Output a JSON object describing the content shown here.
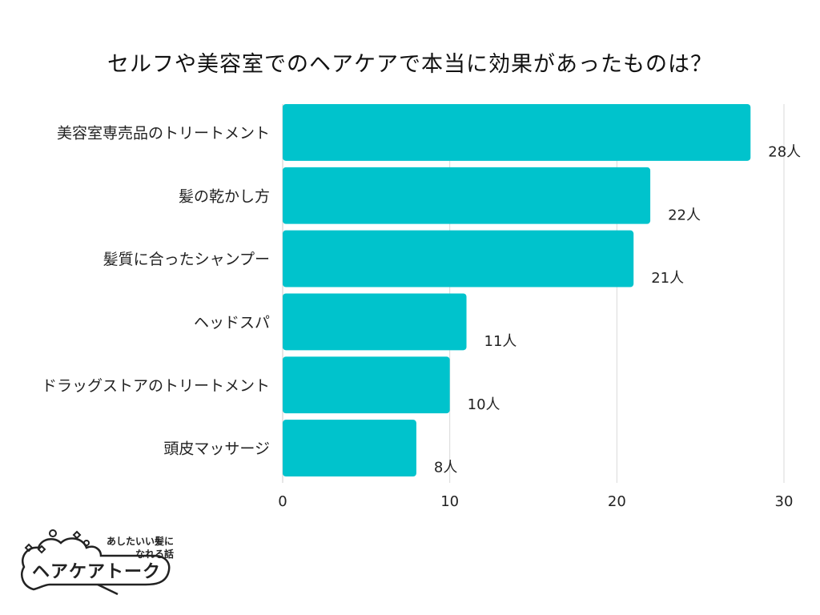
{
  "title": "セルフや美容室でのヘアケアで本当に効果があったものは？",
  "chart_data": {
    "type": "bar",
    "orientation": "horizontal",
    "categories": [
      "美容室専売品のトリートメント",
      "髪の乾かし方",
      "髪質に合ったシャンプー",
      "ヘッドスパ",
      "ドラッグストアのトリートメント",
      "頭皮マッサージ"
    ],
    "values": [
      28,
      22,
      21,
      11,
      10,
      8
    ],
    "value_labels": [
      "28人",
      "22人",
      "21人",
      "11人",
      "10人",
      "8人"
    ],
    "xlim": [
      0,
      30
    ],
    "x_ticks": [
      0,
      10,
      20,
      30
    ],
    "x_tick_labels": [
      "0",
      "10",
      "20",
      "30"
    ],
    "grid": true,
    "bar_color": "#00c3cc",
    "grid_color": "#d9d9d9"
  },
  "logo": {
    "tagline_line1": "あしたいい髪に",
    "tagline_line2": "なれる話",
    "name": "ヘアケアトーク"
  }
}
